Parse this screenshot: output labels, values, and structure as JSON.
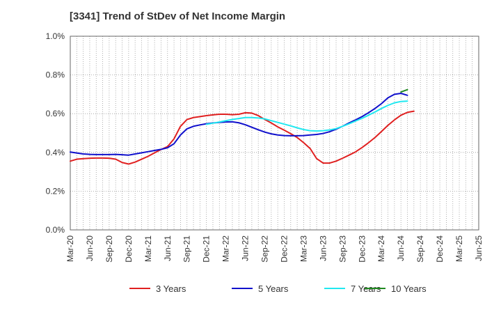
{
  "chart_data": {
    "type": "line",
    "title": "[3341]  Trend of StDev of Net Income Margin",
    "xlabel": "",
    "ylabel": "",
    "ylim": [
      0,
      1.0
    ],
    "y_ticks": [
      "0.0%",
      "0.2%",
      "0.4%",
      "0.6%",
      "0.8%",
      "1.0%"
    ],
    "x_ticks": [
      "Mar-20",
      "Jun-20",
      "Sep-20",
      "Dec-20",
      "Mar-21",
      "Jun-21",
      "Sep-21",
      "Dec-21",
      "Mar-22",
      "Jun-22",
      "Sep-22",
      "Dec-22",
      "Mar-23",
      "Jun-23",
      "Sep-23",
      "Dec-23",
      "Mar-24",
      "Jun-24",
      "Sep-24",
      "Dec-24",
      "Mar-25",
      "Jun-25"
    ],
    "grid": true,
    "legend_placement": "bottom",
    "series": [
      {
        "name": "3 Years",
        "color": "#e02020",
        "start_index": 0,
        "values": [
          0.355,
          0.365,
          0.368,
          0.37,
          0.371,
          0.371,
          0.37,
          0.365,
          0.348,
          0.34,
          0.35,
          0.365,
          0.38,
          0.398,
          0.415,
          0.43,
          0.47,
          0.535,
          0.57,
          0.58,
          0.585,
          0.59,
          0.594,
          0.597,
          0.597,
          0.595,
          0.597,
          0.605,
          0.603,
          0.59,
          0.57,
          0.552,
          0.532,
          0.515,
          0.497,
          0.477,
          0.45,
          0.42,
          0.368,
          0.345,
          0.345,
          0.355,
          0.37,
          0.386,
          0.403,
          0.425,
          0.45,
          0.477,
          0.508,
          0.54,
          0.568,
          0.592,
          0.607,
          0.613
        ]
      },
      {
        "name": "5 Years",
        "color": "#1010cc",
        "start_index": 0,
        "values": [
          0.402,
          0.397,
          0.392,
          0.39,
          0.389,
          0.389,
          0.389,
          0.39,
          0.388,
          0.386,
          0.392,
          0.398,
          0.404,
          0.41,
          0.416,
          0.424,
          0.445,
          0.49,
          0.522,
          0.535,
          0.542,
          0.548,
          0.552,
          0.555,
          0.557,
          0.558,
          0.553,
          0.543,
          0.53,
          0.517,
          0.505,
          0.496,
          0.49,
          0.487,
          0.486,
          0.486,
          0.487,
          0.49,
          0.493,
          0.498,
          0.507,
          0.52,
          0.535,
          0.552,
          0.568,
          0.585,
          0.605,
          0.627,
          0.652,
          0.682,
          0.7,
          0.705,
          0.695
        ]
      },
      {
        "name": "7 Years",
        "color": "#20e8f0",
        "start_index": 21,
        "values": [
          0.545,
          0.551,
          0.557,
          0.564,
          0.57,
          0.575,
          0.58,
          0.58,
          0.578,
          0.573,
          0.564,
          0.555,
          0.546,
          0.537,
          0.527,
          0.518,
          0.512,
          0.511,
          0.512,
          0.516,
          0.523,
          0.535,
          0.548,
          0.562,
          0.576,
          0.592,
          0.609,
          0.627,
          0.643,
          0.656,
          0.663,
          0.665
        ]
      },
      {
        "name": "10 Years",
        "color": "#208a20",
        "start_index": 51,
        "values": [
          0.712,
          0.724
        ]
      }
    ]
  }
}
